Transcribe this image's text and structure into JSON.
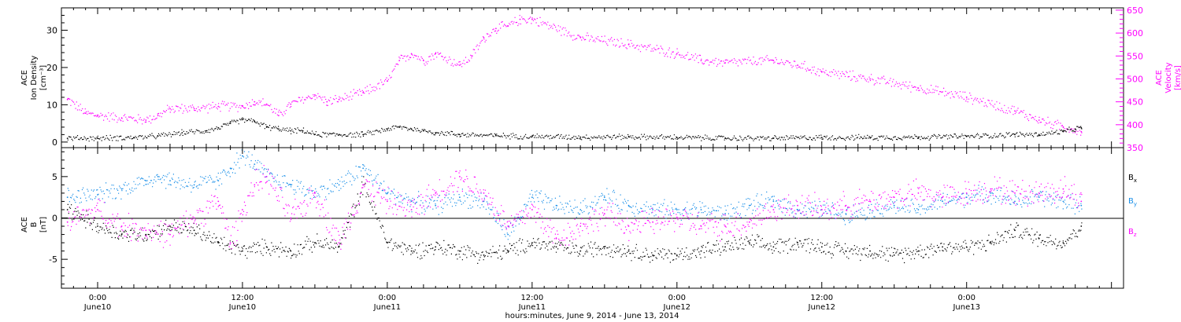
{
  "chart_data": [
    {
      "type": "scatter",
      "panel": "top",
      "ylabel_left": [
        "ACE",
        "Ion Density",
        "[cm⁻³]"
      ],
      "ylabel_right": [
        "ACE",
        "Velocity",
        "[km/s]"
      ],
      "ylim_left": [
        -1.5,
        36
      ],
      "yticks_left": [
        0,
        10,
        20,
        30
      ],
      "ylim_right": [
        350,
        655
      ],
      "yticks_right": [
        350,
        400,
        450,
        500,
        550,
        600,
        650
      ],
      "xlim_hours": [
        -3,
        85
      ],
      "series": [
        {
          "name": "Density",
          "axis": "left",
          "color": "#000000",
          "x": [
            -2.5,
            0,
            3,
            5,
            7,
            9,
            10,
            11,
            12,
            13,
            14,
            15,
            16,
            17,
            18,
            20,
            22,
            24,
            25,
            26,
            27,
            28,
            30,
            33,
            36,
            40,
            44,
            48,
            52,
            56,
            60,
            64,
            68,
            72,
            76,
            78,
            80,
            81,
            81.5
          ],
          "y": [
            1.0,
            1.0,
            1.2,
            1.6,
            2.5,
            3.0,
            3.8,
            5.0,
            6.0,
            5.5,
            4.0,
            3.5,
            3.0,
            3.0,
            2.0,
            2.0,
            2.0,
            3.5,
            4.0,
            3.5,
            3.0,
            2.5,
            2.0,
            1.7,
            1.5,
            1.3,
            1.4,
            1.2,
            1.0,
            1.0,
            1.2,
            1.2,
            1.3,
            1.5,
            2.0,
            2.0,
            2.8,
            3.5,
            3.8
          ]
        },
        {
          "name": "Velocity",
          "axis": "right",
          "color": "#ff00ff",
          "x": [
            -2.5,
            -1,
            0,
            2,
            4,
            5,
            6,
            8,
            10,
            12,
            13,
            14,
            15,
            16,
            18,
            19,
            20,
            22,
            24,
            25,
            26,
            27,
            28,
            30,
            31,
            32,
            33,
            34,
            35,
            36,
            40,
            44,
            48,
            50,
            52,
            56,
            58,
            60,
            64,
            68,
            72,
            76,
            78,
            80,
            81.5
          ],
          "y": [
            455,
            425,
            420,
            415,
            410,
            420,
            435,
            435,
            440,
            440,
            450,
            445,
            420,
            445,
            465,
            450,
            455,
            470,
            495,
            540,
            555,
            540,
            555,
            530,
            550,
            590,
            610,
            615,
            630,
            630,
            590,
            575,
            555,
            540,
            535,
            540,
            530,
            515,
            500,
            480,
            460,
            430,
            410,
            395,
            385
          ]
        }
      ]
    },
    {
      "type": "scatter",
      "panel": "bottom",
      "ylabel_left": [
        "ACE",
        "B",
        "[nT]"
      ],
      "ylim": [
        -8.5,
        8.5
      ],
      "yticks": [
        -5,
        0,
        5
      ],
      "zero_line": true,
      "xlim_hours": [
        -3,
        85
      ],
      "series": [
        {
          "name": "Bx",
          "color": "#000000",
          "x": [
            -2.5,
            0,
            2,
            4,
            6,
            8,
            10,
            12,
            14,
            16,
            18,
            20,
            22,
            24,
            26,
            28,
            30,
            32,
            34,
            36,
            38,
            40,
            42,
            44,
            46,
            48,
            50,
            52,
            54,
            56,
            58,
            60,
            62,
            64,
            66,
            68,
            70,
            72,
            74,
            76,
            78,
            80,
            81.5
          ],
          "y": [
            1.0,
            -1.0,
            -2.0,
            -2.0,
            -1.0,
            -1.5,
            -3.0,
            -4.0,
            -3.5,
            -4.0,
            -3.0,
            -3.5,
            4.0,
            -3.0,
            -4.0,
            -3.5,
            -4.0,
            -4.5,
            -4.0,
            -3.0,
            -3.5,
            -4.0,
            -3.5,
            -4.0,
            -4.5,
            -4.5,
            -4.0,
            -3.5,
            -3.0,
            -3.5,
            -3.0,
            -3.5,
            -4.0,
            -4.0,
            -4.5,
            -4.0,
            -3.5,
            -3.5,
            -3.0,
            -1.5,
            -2.5,
            -3.0,
            -1.0
          ]
        },
        {
          "name": "By",
          "color": "#1a8fe8",
          "x": [
            -2.5,
            0,
            2,
            4,
            5,
            6,
            8,
            10,
            11,
            12,
            13,
            14,
            16,
            18,
            20,
            22,
            24,
            26,
            28,
            30,
            32,
            34,
            36,
            38,
            40,
            42,
            44,
            46,
            48,
            50,
            52,
            54,
            56,
            58,
            60,
            62,
            64,
            66,
            68,
            70,
            72,
            74,
            76,
            78,
            80,
            81.5
          ],
          "y": [
            2.5,
            2.8,
            3.5,
            4.5,
            5.0,
            4.5,
            4.0,
            4.5,
            6.0,
            7.5,
            6.5,
            5.0,
            4.0,
            3.0,
            4.0,
            6.0,
            3.0,
            2.0,
            1.5,
            2.5,
            2.0,
            -2.0,
            2.5,
            1.5,
            1.0,
            2.5,
            1.5,
            1.0,
            1.0,
            1.0,
            0.5,
            1.5,
            2.0,
            1.0,
            1.0,
            0.5,
            1.0,
            1.5,
            1.0,
            2.0,
            2.5,
            3.0,
            2.0,
            2.5,
            2.0,
            1.5
          ]
        },
        {
          "name": "Bz",
          "color": "#ff00ff",
          "x": [
            -2.5,
            0,
            2,
            4,
            6,
            8,
            10,
            11,
            12,
            13,
            14,
            16,
            18,
            20,
            22,
            24,
            26,
            28,
            30,
            32,
            34,
            36,
            38,
            40,
            42,
            44,
            46,
            48,
            50,
            52,
            54,
            56,
            58,
            60,
            62,
            64,
            66,
            68,
            70,
            72,
            74,
            76,
            78,
            80,
            81.5
          ],
          "y": [
            -0.5,
            1.0,
            -1.0,
            -1.5,
            -2.0,
            0.0,
            2.0,
            -3.0,
            1.0,
            4.0,
            5.0,
            0.0,
            3.0,
            -3.0,
            4.0,
            2.0,
            1.0,
            3.0,
            5.0,
            3.0,
            -1.0,
            1.0,
            -2.5,
            -1.0,
            0.5,
            -1.0,
            -0.5,
            0.0,
            -1.0,
            -1.0,
            -0.5,
            1.0,
            1.5,
            1.0,
            1.5,
            2.0,
            2.5,
            3.0,
            2.5,
            3.0,
            3.5,
            3.0,
            3.0,
            3.5,
            2.0
          ]
        }
      ],
      "legend_labels": [
        {
          "base": "B",
          "sub": "x",
          "color": "#000000"
        },
        {
          "base": "B",
          "sub": "y",
          "color": "#1a8fe8"
        },
        {
          "base": "B",
          "sub": "z",
          "color": "#ff00ff"
        }
      ]
    }
  ],
  "x_axis": {
    "ticks": [
      {
        "hour": 0,
        "time": "0:00",
        "date": "June10"
      },
      {
        "hour": 12,
        "time": "12:00",
        "date": "June10"
      },
      {
        "hour": 24,
        "time": "0:00",
        "date": "June11"
      },
      {
        "hour": 36,
        "time": "12:00",
        "date": "June11"
      },
      {
        "hour": 48,
        "time": "0:00",
        "date": "June12"
      },
      {
        "hour": 60,
        "time": "12:00",
        "date": "June12"
      },
      {
        "hour": 72,
        "time": "0:00",
        "date": "June13"
      }
    ],
    "title": "hours:minutes, June  9, 2014 - June 13, 2014"
  },
  "colors": {
    "black": "#000000",
    "magenta": "#ff00ff",
    "blue": "#1a8fe8",
    "frame": "#000000"
  }
}
